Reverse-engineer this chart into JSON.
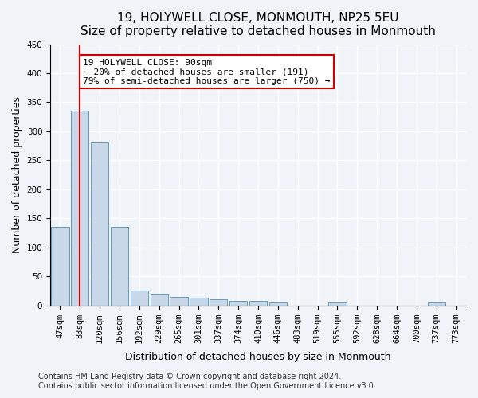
{
  "title": "19, HOLYWELL CLOSE, MONMOUTH, NP25 5EU",
  "subtitle": "Size of property relative to detached houses in Monmouth",
  "xlabel": "Distribution of detached houses by size in Monmouth",
  "ylabel": "Number of detached properties",
  "categories": [
    "47sqm",
    "83sqm",
    "120sqm",
    "156sqm",
    "192sqm",
    "229sqm",
    "265sqm",
    "301sqm",
    "337sqm",
    "374sqm",
    "410sqm",
    "446sqm",
    "483sqm",
    "519sqm",
    "555sqm",
    "592sqm",
    "628sqm",
    "664sqm",
    "700sqm",
    "737sqm",
    "773sqm"
  ],
  "values": [
    135,
    335,
    280,
    135,
    25,
    20,
    15,
    13,
    10,
    8,
    8,
    5,
    0,
    0,
    5,
    0,
    0,
    0,
    0,
    5,
    0
  ],
  "bar_color": "#c8d8e8",
  "bar_edge_color": "#6699bb",
  "ylim": [
    0,
    450
  ],
  "yticks": [
    0,
    50,
    100,
    150,
    200,
    250,
    300,
    350,
    400,
    450
  ],
  "property_line_x": 1,
  "annotation_text": "19 HOLYWELL CLOSE: 90sqm\n← 20% of detached houses are smaller (191)\n79% of semi-detached houses are larger (750) →",
  "annotation_box_color": "#ffffff",
  "annotation_box_edge": "#cc0000",
  "property_line_color": "#cc0000",
  "footer_line1": "Contains HM Land Registry data © Crown copyright and database right 2024.",
  "footer_line2": "Contains public sector information licensed under the Open Government Licence v3.0.",
  "background_color": "#f0f4f8",
  "plot_background": "#f0f4f8",
  "grid_color": "#ffffff",
  "title_fontsize": 11,
  "subtitle_fontsize": 10,
  "xlabel_fontsize": 9,
  "ylabel_fontsize": 9,
  "tick_fontsize": 7.5,
  "annotation_fontsize": 8,
  "footer_fontsize": 7
}
